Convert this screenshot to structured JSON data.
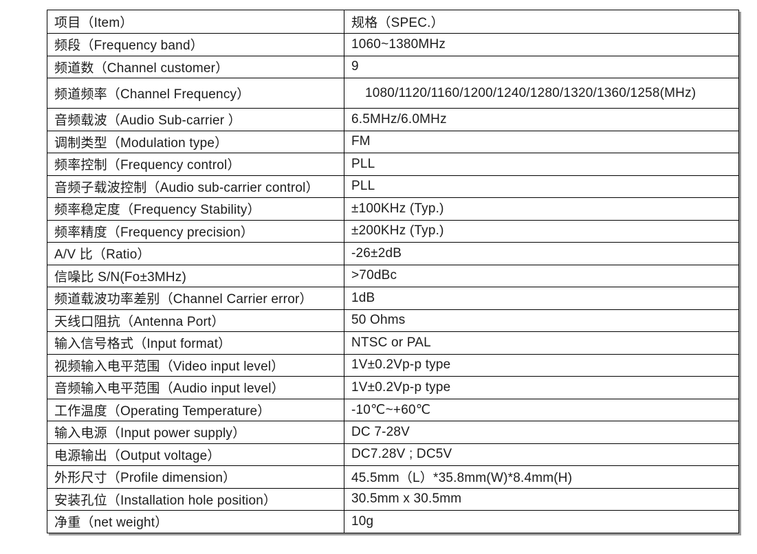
{
  "table": {
    "header": {
      "item": "项目（Item）",
      "spec": "规格（SPEC.）"
    },
    "rows": [
      {
        "item": "频段（Frequency band）",
        "spec": "1060~1380MHz"
      },
      {
        "item": "频道数（Channel customer）",
        "spec": "9"
      },
      {
        "item": "频道频率（Channel Frequency）",
        "spec": "1080/1120/1160/1200/1240/1280/1320/1360/1258(MHz)"
      },
      {
        "item": "音频载波（Audio Sub-carrier ）",
        "spec": "6.5MHz/6.0MHz"
      },
      {
        "item": "调制类型（Modulation type）",
        "spec": "FM"
      },
      {
        "item": "频率控制（Frequency control）",
        "spec": "PLL"
      },
      {
        "item": "音频子载波控制（Audio sub-carrier control）",
        "spec": "PLL"
      },
      {
        "item": "频率稳定度（Frequency Stability）",
        "spec": "±100KHz (Typ.)"
      },
      {
        "item": "频率精度（Frequency precision）",
        "spec": "±200KHz (Typ.)"
      },
      {
        "item": "A/V 比（Ratio）",
        "spec": "-26±2dB"
      },
      {
        "item": "信噪比 S/N(Fo±3MHz)",
        "spec": ">70dBc"
      },
      {
        "item": "频道载波功率差别（Channel Carrier error）",
        "spec": "1dB"
      },
      {
        "item": "天线口阻抗（Antenna Port）",
        "spec": "50 Ohms"
      },
      {
        "item": "输入信号格式（Input format）",
        "spec": "NTSC or PAL"
      },
      {
        "item": "视频输入电平范围（Video input level）",
        "spec": "1V±0.2Vp-p type"
      },
      {
        "item": "音频输入电平范围（Audio input level）",
        "spec": "1V±0.2Vp-p type"
      },
      {
        "item": "工作温度（Operating Temperature）",
        "spec": "-10℃~+60℃"
      },
      {
        "item": "输入电源（Input power supply）",
        "spec": "DC 7-28V"
      },
      {
        "item": "电源输出（Output voltage）",
        "spec": "DC7.28V ; DC5V"
      },
      {
        "item": "外形尺寸（Profile dimension）",
        "spec": "45.5mm（L）*35.8mm(W)*8.4mm(H)"
      },
      {
        "item": "安装孔位（Installation hole position）",
        "spec": "30.5mm x 30.5mm"
      },
      {
        "item": "净重（net weight）",
        "spec": "10g"
      }
    ],
    "colors": {
      "border": "#000000",
      "text": "#1c1c1c",
      "shadow": "#9b9b9b",
      "background": "#ffffff"
    }
  }
}
